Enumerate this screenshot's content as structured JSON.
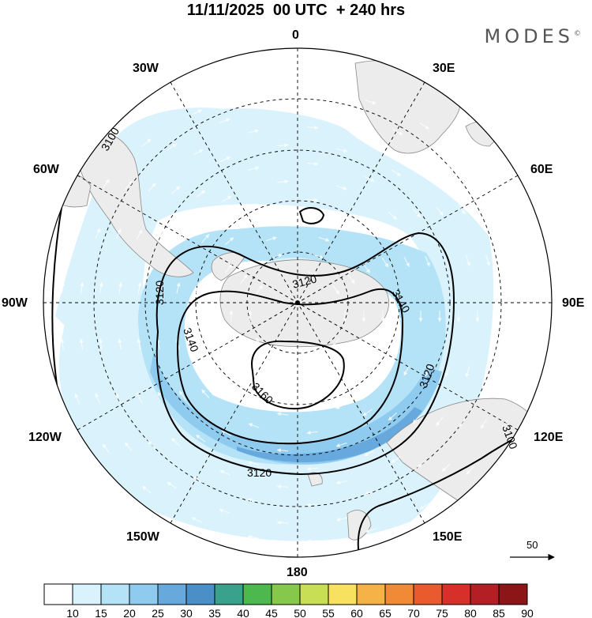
{
  "title": "11/11/2025  00 UTC  + 240 hrs",
  "brand": "MODES",
  "brand_mark": "©",
  "longitude_labels": [
    "0",
    "30E",
    "60E",
    "90E",
    "120E",
    "150E",
    "180",
    "150W",
    "120W",
    "90W",
    "60W",
    "30W"
  ],
  "contour_labels": [
    "3100",
    "3120",
    "3140",
    "3160",
    "3120",
    "3140",
    "3120",
    "3100",
    "3120"
  ],
  "colorbar": {
    "ticks": [
      "10",
      "15",
      "20",
      "25",
      "30",
      "35",
      "40",
      "45",
      "50",
      "55",
      "60",
      "65",
      "70",
      "75",
      "80",
      "85",
      "90"
    ],
    "colors": [
      "#ffffff",
      "#d9f2fc",
      "#b4e2f7",
      "#8ecbef",
      "#67a9dd",
      "#4a8fc7",
      "#3aa18c",
      "#4cb84e",
      "#86c84b",
      "#c8df55",
      "#f8e15e",
      "#f5b246",
      "#f18a36",
      "#ea5a2f",
      "#d7302a",
      "#b31f24",
      "#8c1518"
    ]
  },
  "vector_reference": {
    "value": "50"
  },
  "colors": {
    "land": "#ececec",
    "coast": "#888888",
    "contour": "#000000",
    "grid": "#000000"
  }
}
